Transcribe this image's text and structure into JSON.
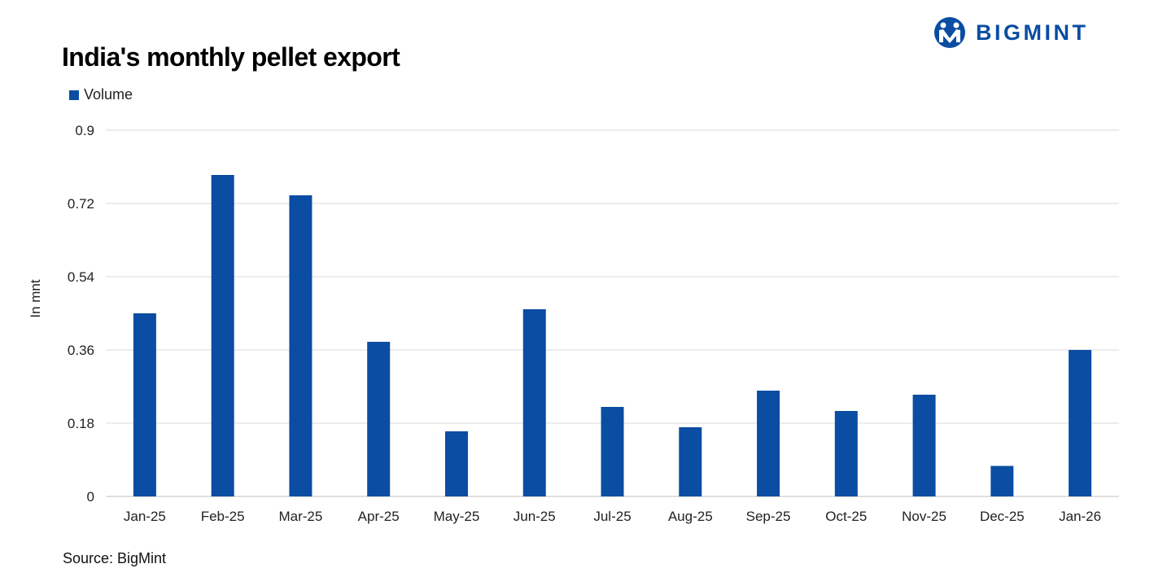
{
  "brand": {
    "name": "BIGMINT",
    "color": "#0a4da2"
  },
  "source": "Source: BigMint",
  "chart_data": {
    "type": "bar",
    "title": "India's monthly pellet export",
    "ylabel": "In mnt",
    "xlabel": "",
    "categories": [
      "Jan-25",
      "Feb-25",
      "Mar-25",
      "Apr-25",
      "May-25",
      "Jun-25",
      "Jul-25",
      "Aug-25",
      "Sep-25",
      "Oct-25",
      "Nov-25",
      "Dec-25",
      "Jan-26"
    ],
    "series": [
      {
        "name": "Volume",
        "color": "#0a4da2",
        "values": [
          0.45,
          0.79,
          0.74,
          0.38,
          0.16,
          0.46,
          0.22,
          0.17,
          0.26,
          0.21,
          0.25,
          0.075,
          0.36
        ]
      }
    ],
    "ylim": [
      0,
      0.9
    ],
    "yticks": [
      "0",
      "0.18",
      "0.36",
      "0.54",
      "0.72",
      "0.9"
    ],
    "grid": true,
    "legend_position": "top-left"
  }
}
